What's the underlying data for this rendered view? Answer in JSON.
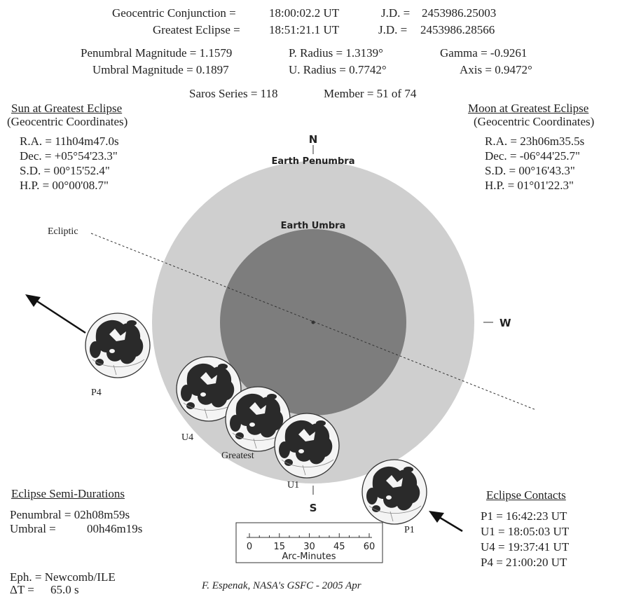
{
  "header": {
    "conjunction_label": "Geocentric Conjunction =",
    "conjunction_time": "18:00:02.2 UT",
    "conjunction_jd_label": "J.D. =",
    "conjunction_jd": "2453986.25003",
    "greatest_label": "Greatest Eclipse =",
    "greatest_time": "18:51:21.1 UT",
    "greatest_jd_label": "J.D. =",
    "greatest_jd": "2453986.28566",
    "penumbral_mag": "Penumbral Magnitude = 1.1579",
    "p_radius": "P. Radius = 1.3139°",
    "gamma": "Gamma = -0.9261",
    "umbral_mag": "Umbral Magnitude = 0.1897",
    "u_radius": "U. Radius = 0.7742°",
    "axis": "Axis = 0.9472°",
    "saros": "Saros Series = 118",
    "member": "Member = 51 of 74"
  },
  "sun": {
    "title": "Sun at Greatest Eclipse",
    "subtitle": "(Geocentric Coordinates)",
    "ra": "R.A. = 11h04m47.0s",
    "dec": "Dec. = +05°54'23.3\"",
    "sd": "S.D. = 00°15'52.4\"",
    "hp": "H.P. = 00°00'08.7\""
  },
  "moon": {
    "title": "Moon at Greatest Eclipse",
    "subtitle": "(Geocentric Coordinates)",
    "ra": "R.A. = 23h06m35.5s",
    "dec": "Dec. = -06°44'25.7\"",
    "sd": "S.D. = 00°16'43.3\"",
    "hp": "H.P. = 01°01'22.3\""
  },
  "diagram": {
    "north": "N",
    "south": "S",
    "west": "W",
    "penumbra_label": "Earth Penumbra",
    "umbra_label": "Earth Umbra",
    "ecliptic_label": "Ecliptic",
    "moon_labels": {
      "p4": "P4",
      "u4": "U4",
      "greatest": "Greatest",
      "u1": "U1",
      "p1": "P1"
    },
    "colors": {
      "penumbra": "#cfcfcf",
      "umbra": "#7d7d7d",
      "moon_fill": "#f4f4f4",
      "maria": "#2a2a2a"
    }
  },
  "scale": {
    "ticks": [
      "0",
      "15",
      "30",
      "45",
      "60"
    ],
    "label": "Arc-Minutes"
  },
  "durations": {
    "title": "Eclipse Semi-Durations",
    "penumbral": "Penumbral = 02h08m59s",
    "umbral_label": "Umbral =",
    "umbral_value": "00h46m19s"
  },
  "contacts": {
    "title": "Eclipse Contacts",
    "p1": "P1 = 16:42:23 UT",
    "u1": "U1 = 18:05:03 UT",
    "u4": "U4 = 19:37:41 UT",
    "p4": "P4 = 21:00:20 UT"
  },
  "ephemeris": {
    "eph": "Eph. = Newcomb/ILE",
    "delta_t_label": "ΔT =",
    "delta_t_value": "65.0 s"
  },
  "credit": "F. Espenak, NASA's GSFC - 2005 Apr"
}
